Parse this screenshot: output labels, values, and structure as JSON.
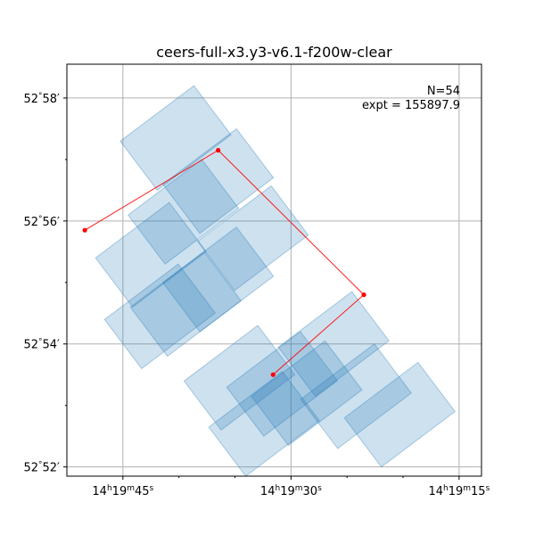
{
  "chart_data": {
    "type": "scatter",
    "title": "ceers-full-x3.y3-v6.1-f200w-clear",
    "xlabel": "",
    "ylabel": "",
    "x_axis": {
      "quantity": "Right Ascension (seconds past 14h19m)",
      "range": [
        50,
        13
      ],
      "inverted": true,
      "ticks": [
        45,
        30,
        15
      ],
      "tick_labels": [
        "14h19m45s",
        "14h19m30s",
        "14h19m15s"
      ],
      "tick_label_parts": [
        {
          "h": "14",
          "m": "19",
          "s": "45"
        },
        {
          "h": "14",
          "m": "19",
          "s": "30"
        },
        {
          "h": "14",
          "m": "19",
          "s": "15"
        }
      ],
      "minor_ticks": [
        40,
        35,
        25,
        20
      ]
    },
    "y_axis": {
      "quantity": "Declination (arcmin past 52°)",
      "range": [
        51.85,
        58.55
      ],
      "ticks": [
        52,
        54,
        56,
        58
      ],
      "tick_labels": [
        "52°52′",
        "52°54′",
        "52°56′",
        "52°58′"
      ],
      "tick_label_parts": [
        {
          "deg": "52",
          "min": "52"
        },
        {
          "deg": "52",
          "min": "54"
        },
        {
          "deg": "52",
          "min": "56"
        },
        {
          "deg": "52",
          "min": "58"
        }
      ],
      "minor_ticks": [
        53,
        55,
        57
      ]
    },
    "grid": true,
    "annotations": {
      "count_label": "N=54",
      "exposure_label": "expt = 155897.9",
      "placement": "top-right"
    },
    "footprint_color": "#1f77b4",
    "outline_color": "#ff0000",
    "footprints": [
      {
        "ra": 40.3,
        "dec": 57.35,
        "w": 1.5,
        "h": 1.0
      },
      {
        "ra": 36.5,
        "dec": 56.65,
        "w": 1.5,
        "h": 1.0
      },
      {
        "ra": 39.6,
        "dec": 56.15,
        "w": 1.5,
        "h": 1.0
      },
      {
        "ra": 33.4,
        "dec": 55.72,
        "w": 1.5,
        "h": 1.0
      },
      {
        "ra": 42.5,
        "dec": 55.45,
        "w": 1.5,
        "h": 1.0
      },
      {
        "ra": 36.5,
        "dec": 55.05,
        "w": 1.5,
        "h": 1.0
      },
      {
        "ra": 41.7,
        "dec": 54.45,
        "w": 1.5,
        "h": 1.0
      },
      {
        "ra": 39.4,
        "dec": 54.65,
        "w": 1.5,
        "h": 1.0
      },
      {
        "ra": 34.6,
        "dec": 53.45,
        "w": 1.5,
        "h": 1.0
      },
      {
        "ra": 30.8,
        "dec": 53.35,
        "w": 1.5,
        "h": 1.0
      },
      {
        "ra": 26.2,
        "dec": 54.0,
        "w": 1.5,
        "h": 1.0
      },
      {
        "ra": 28.6,
        "dec": 53.2,
        "w": 1.5,
        "h": 1.0
      },
      {
        "ra": 24.2,
        "dec": 53.15,
        "w": 1.5,
        "h": 1.0
      },
      {
        "ra": 20.3,
        "dec": 52.85,
        "w": 1.5,
        "h": 1.0
      },
      {
        "ra": 32.4,
        "dec": 52.7,
        "w": 1.5,
        "h": 1.0
      }
    ],
    "outline_points": [
      {
        "ra": 48.4,
        "dec": 55.85
      },
      {
        "ra": 36.5,
        "dec": 57.15
      },
      {
        "ra": 23.5,
        "dec": 54.8
      },
      {
        "ra": 31.6,
        "dec": 53.5
      }
    ]
  }
}
